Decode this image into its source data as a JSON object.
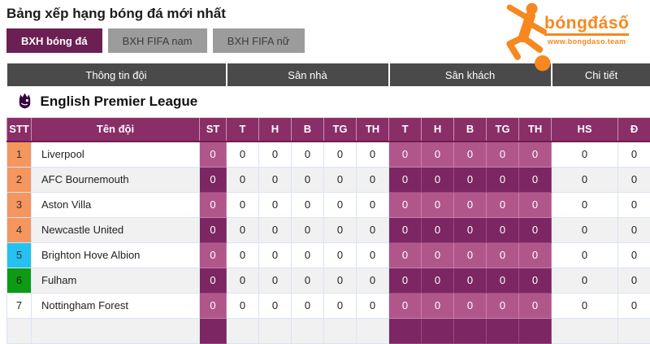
{
  "page": {
    "title": "Bảng xếp hạng bóng đá mới nhất"
  },
  "tabs": [
    {
      "label": "BXH bóng đá",
      "active": true
    },
    {
      "label": "BXH FIFA nam",
      "active": false
    },
    {
      "label": "BXH FIFA nữ",
      "active": false
    }
  ],
  "logo": {
    "text": "bóngđásố",
    "subtext": "www.bongdaso.team"
  },
  "table": {
    "groups": [
      {
        "label": "Thông tin đội",
        "span": 3
      },
      {
        "label": "Sân nhà",
        "span": 5
      },
      {
        "label": "Sân khách",
        "span": 5
      },
      {
        "label": "Chi tiết",
        "span": 2
      }
    ],
    "league": {
      "name": "English Premier League"
    },
    "columns": [
      "STT",
      "Tên đội",
      "ST",
      "T",
      "H",
      "B",
      "TG",
      "TH",
      "T",
      "H",
      "B",
      "TG",
      "TH",
      "HS",
      "Đ"
    ],
    "purple_stat_indices": [
      0,
      6,
      7,
      8,
      9,
      10
    ],
    "rows": [
      {
        "rank": "1",
        "rank_color": "orange",
        "team": "Liverpool",
        "stats": [
          "0",
          "0",
          "0",
          "0",
          "0",
          "0",
          "0",
          "0",
          "0",
          "0",
          "0",
          "0",
          "0"
        ]
      },
      {
        "rank": "2",
        "rank_color": "orange",
        "team": "AFC Bournemouth",
        "stats": [
          "0",
          "0",
          "0",
          "0",
          "0",
          "0",
          "0",
          "0",
          "0",
          "0",
          "0",
          "0",
          "0"
        ]
      },
      {
        "rank": "3",
        "rank_color": "orange",
        "team": "Aston Villa",
        "stats": [
          "0",
          "0",
          "0",
          "0",
          "0",
          "0",
          "0",
          "0",
          "0",
          "0",
          "0",
          "0",
          "0"
        ]
      },
      {
        "rank": "4",
        "rank_color": "orange",
        "team": "Newcastle United",
        "stats": [
          "0",
          "0",
          "0",
          "0",
          "0",
          "0",
          "0",
          "0",
          "0",
          "0",
          "0",
          "0",
          "0"
        ]
      },
      {
        "rank": "5",
        "rank_color": "cyan",
        "team": "Brighton Hove Albion",
        "stats": [
          "0",
          "0",
          "0",
          "0",
          "0",
          "0",
          "0",
          "0",
          "0",
          "0",
          "0",
          "0",
          "0"
        ]
      },
      {
        "rank": "6",
        "rank_color": "green",
        "team": "Fulham",
        "stats": [
          "0",
          "0",
          "0",
          "0",
          "0",
          "0",
          "0",
          "0",
          "0",
          "0",
          "0",
          "0",
          "0"
        ]
      },
      {
        "rank": "7",
        "rank_color": "none",
        "team": "Nottingham Forest",
        "stats": [
          "0",
          "0",
          "0",
          "0",
          "0",
          "0",
          "0",
          "0",
          "0",
          "0",
          "0",
          "0",
          "0"
        ]
      }
    ],
    "partial_row_visible": true
  },
  "colors": {
    "header_purple": "#8a2e68",
    "cell_purple_light": "#b1568b",
    "cell_purple_dark": "#7c2663",
    "rank_orange": "#f5965f",
    "rank_cyan": "#25c1ef",
    "rank_green": "#0c9b13",
    "tab_active": "#6b1f52",
    "tab_inactive": "#9c9c9c",
    "group_header_gray": "#4a4a4a",
    "logo_orange": "#f6881f",
    "epl_purple": "#38003c"
  }
}
